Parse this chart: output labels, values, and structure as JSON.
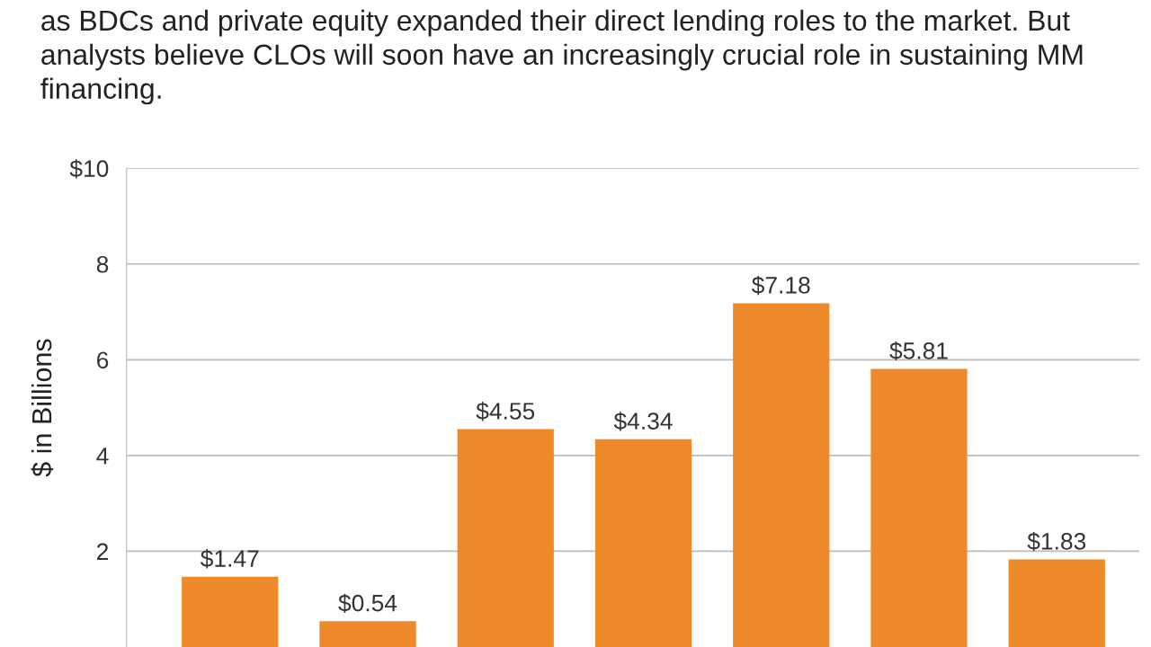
{
  "chart_data": {
    "type": "bar",
    "subtitle": "as BDCs and private equity expanded their direct lending roles to the market. But analysts believe CLOs will soon have an increasingly crucial role in sustaining MM financing.",
    "ylabel": "$ in Billions",
    "categories": [
      null,
      null,
      null,
      null,
      null,
      null,
      null
    ],
    "values": [
      1.47,
      0.54,
      4.55,
      4.34,
      7.18,
      5.81,
      1.83
    ],
    "value_labels": [
      "$1.47",
      "$0.54",
      "$4.55",
      "$4.34",
      "$7.18",
      "$5.81",
      "$1.83"
    ],
    "color": "#ef8a2c",
    "ylim": [
      0,
      10
    ],
    "yticks": [
      {
        "value": 2,
        "label": "2"
      },
      {
        "value": 4,
        "label": "4"
      },
      {
        "value": 6,
        "label": "6"
      },
      {
        "value": 8,
        "label": "8"
      },
      {
        "value": 10,
        "label": "$10"
      }
    ],
    "tick_labels": "y",
    "grid": "y",
    "legend": false
  }
}
